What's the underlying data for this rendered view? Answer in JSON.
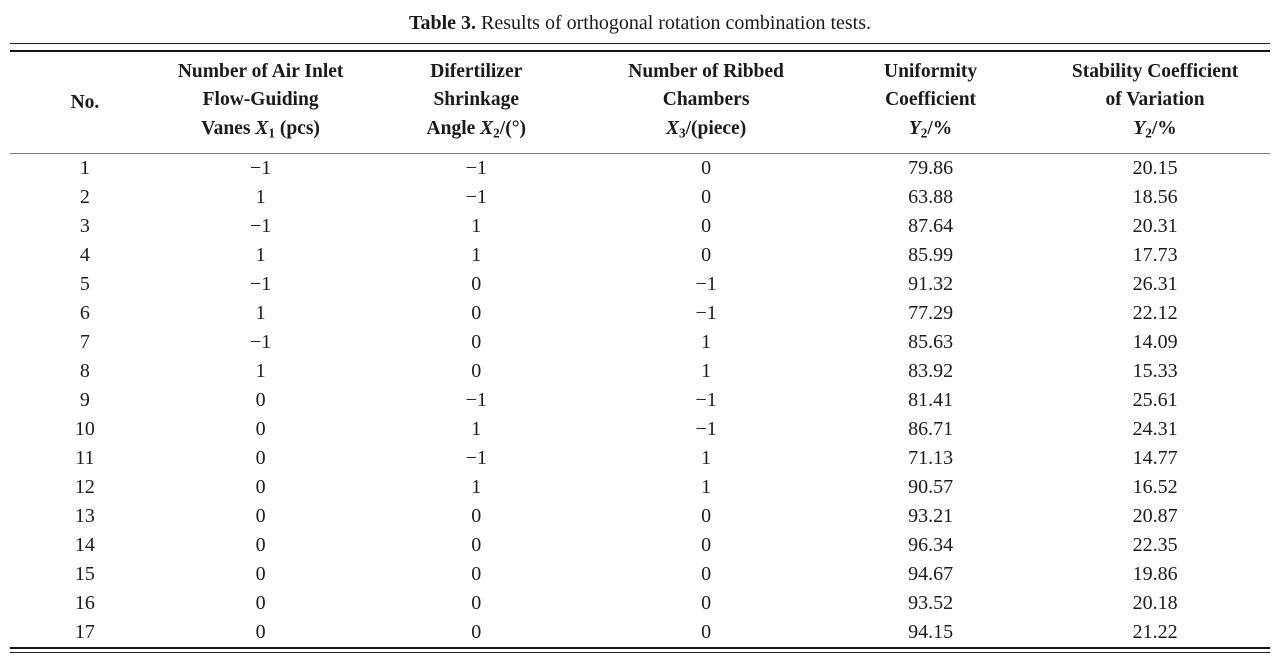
{
  "caption": {
    "label": "Table 3.",
    "text": " Results of orthogonal rotation combination tests."
  },
  "table": {
    "columns": [
      {
        "id": "no",
        "header": [
          [
            {
              "t": "No."
            }
          ]
        ]
      },
      {
        "id": "x1",
        "header": [
          [
            {
              "t": "Number of Air Inlet"
            }
          ],
          [
            {
              "t": "Flow-Guiding"
            }
          ],
          [
            {
              "t": "Vanes "
            },
            {
              "t": "X",
              "style": "var"
            },
            {
              "t": "1",
              "style": "sub"
            },
            {
              "t": " (pcs)"
            }
          ]
        ]
      },
      {
        "id": "x2",
        "header": [
          [
            {
              "t": "Difertilizer"
            }
          ],
          [
            {
              "t": "Shrinkage"
            }
          ],
          [
            {
              "t": "Angle "
            },
            {
              "t": "X",
              "style": "var"
            },
            {
              "t": "2",
              "style": "sub"
            },
            {
              "t": "/(°)"
            }
          ]
        ]
      },
      {
        "id": "x3",
        "header": [
          [
            {
              "t": "Number of Ribbed"
            }
          ],
          [
            {
              "t": "Chambers"
            }
          ],
          [
            {
              "t": "X",
              "style": "var"
            },
            {
              "t": "3",
              "style": "sub"
            },
            {
              "t": "/(piece)"
            }
          ]
        ]
      },
      {
        "id": "y2",
        "header": [
          [
            {
              "t": "Uniformity"
            }
          ],
          [
            {
              "t": "Coefficient"
            }
          ],
          [
            {
              "t": "Y",
              "style": "var"
            },
            {
              "t": "2",
              "style": "sub"
            },
            {
              "t": "/%"
            }
          ]
        ]
      },
      {
        "id": "scv",
        "header": [
          [
            {
              "t": "Stability Coefficient"
            }
          ],
          [
            {
              "t": "of Variation"
            }
          ],
          [
            {
              "t": "Y",
              "style": "var"
            },
            {
              "t": "2",
              "style": "sub"
            },
            {
              "t": "/%"
            }
          ]
        ]
      }
    ],
    "rows": [
      [
        "1",
        "−1",
        "−1",
        "0",
        "79.86",
        "20.15"
      ],
      [
        "2",
        "1",
        "−1",
        "0",
        "63.88",
        "18.56"
      ],
      [
        "3",
        "−1",
        "1",
        "0",
        "87.64",
        "20.31"
      ],
      [
        "4",
        "1",
        "1",
        "0",
        "85.99",
        "17.73"
      ],
      [
        "5",
        "−1",
        "0",
        "−1",
        "91.32",
        "26.31"
      ],
      [
        "6",
        "1",
        "0",
        "−1",
        "77.29",
        "22.12"
      ],
      [
        "7",
        "−1",
        "0",
        "1",
        "85.63",
        "14.09"
      ],
      [
        "8",
        "1",
        "0",
        "1",
        "83.92",
        "15.33"
      ],
      [
        "9",
        "0",
        "−1",
        "−1",
        "81.41",
        "25.61"
      ],
      [
        "10",
        "0",
        "1",
        "−1",
        "86.71",
        "24.31"
      ],
      [
        "11",
        "0",
        "−1",
        "1",
        "71.13",
        "14.77"
      ],
      [
        "12",
        "0",
        "1",
        "1",
        "90.57",
        "16.52"
      ],
      [
        "13",
        "0",
        "0",
        "0",
        "93.21",
        "20.87"
      ],
      [
        "14",
        "0",
        "0",
        "0",
        "96.34",
        "22.35"
      ],
      [
        "15",
        "0",
        "0",
        "0",
        "94.67",
        "19.86"
      ],
      [
        "16",
        "0",
        "0",
        "0",
        "93.52",
        "20.18"
      ],
      [
        "17",
        "0",
        "0",
        "0",
        "94.15",
        "21.22"
      ]
    ]
  },
  "chart_data": {
    "type": "table",
    "title": "Table 3. Results of orthogonal rotation combination tests.",
    "categories": [
      "No.",
      "Number of Air Inlet Flow-Guiding Vanes X1 (pcs)",
      "Difertilizer Shrinkage Angle X2/(°)",
      "Number of Ribbed Chambers X3/(piece)",
      "Uniformity Coefficient Y2/%",
      "Stability Coefficient of Variation Y2/%"
    ],
    "series": [
      {
        "name": "X1",
        "values": [
          -1,
          1,
          -1,
          1,
          -1,
          1,
          -1,
          1,
          0,
          0,
          0,
          0,
          0,
          0,
          0,
          0,
          0
        ]
      },
      {
        "name": "X2",
        "values": [
          -1,
          -1,
          1,
          1,
          0,
          0,
          0,
          0,
          -1,
          1,
          -1,
          1,
          0,
          0,
          0,
          0,
          0
        ]
      },
      {
        "name": "X3",
        "values": [
          0,
          0,
          0,
          0,
          -1,
          -1,
          1,
          1,
          -1,
          -1,
          1,
          1,
          0,
          0,
          0,
          0,
          0
        ]
      },
      {
        "name": "Uniformity Coefficient Y2 (%)",
        "values": [
          79.86,
          63.88,
          87.64,
          85.99,
          91.32,
          77.29,
          85.63,
          83.92,
          81.41,
          86.71,
          71.13,
          90.57,
          93.21,
          96.34,
          94.67,
          93.52,
          94.15
        ]
      },
      {
        "name": "Stability Coefficient of Variation Y2 (%)",
        "values": [
          20.15,
          18.56,
          20.31,
          17.73,
          26.31,
          22.12,
          14.09,
          15.33,
          25.61,
          24.31,
          14.77,
          16.52,
          20.87,
          22.35,
          19.86,
          20.18,
          21.22
        ]
      }
    ]
  },
  "colors": {
    "text": "#1a1a1a",
    "rule": "#141414",
    "header_separator": "#7d7d7d",
    "background": "#ffffff"
  }
}
